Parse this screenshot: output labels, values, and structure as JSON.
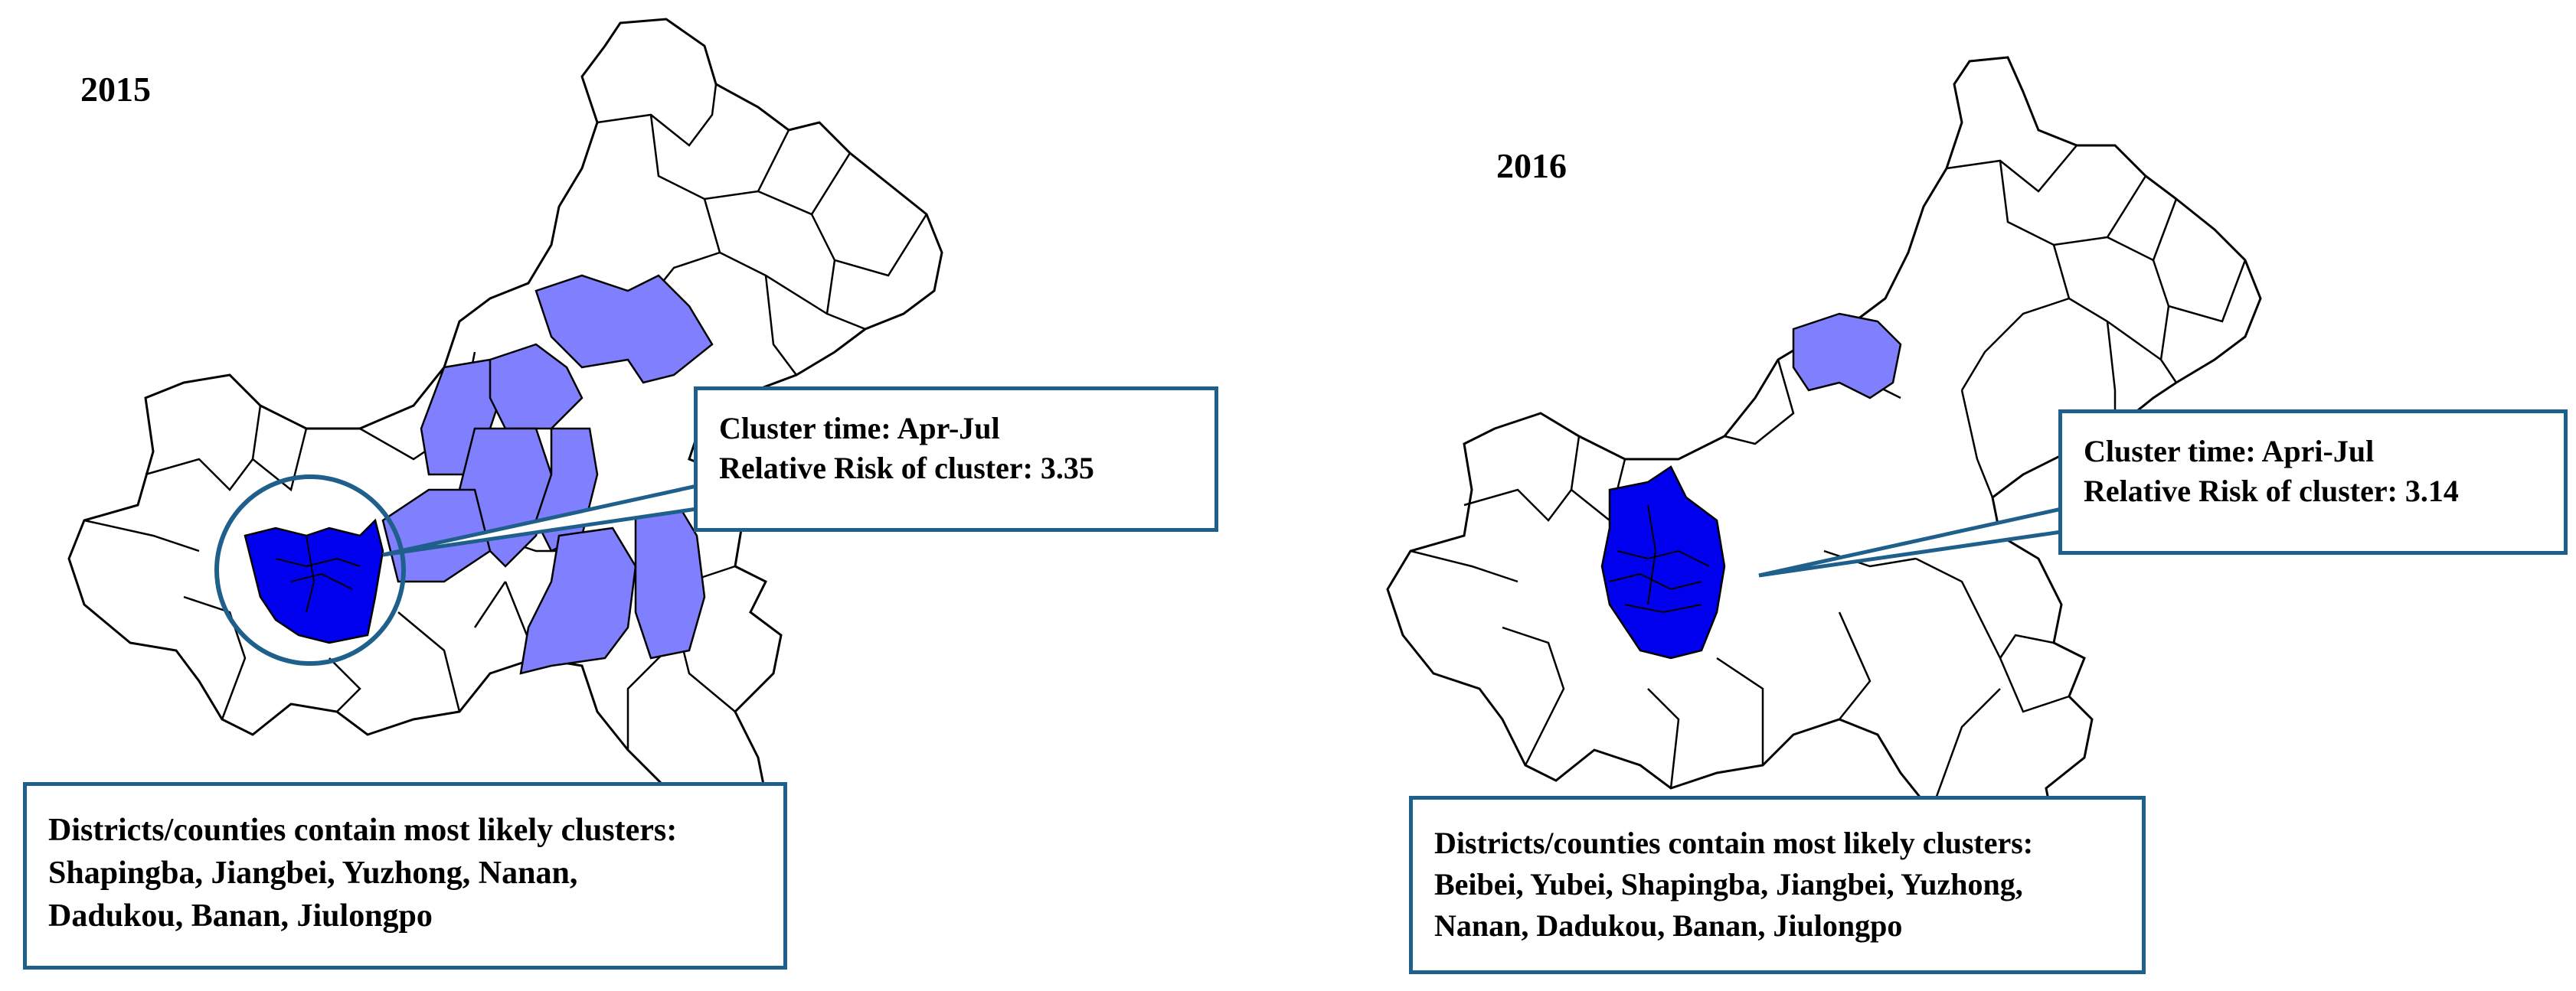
{
  "colors": {
    "cluster_core": "#0000ee",
    "cluster_secondary": "#8080ff",
    "callout_border": "#1f5f8b",
    "boundary": "#000000"
  },
  "panels": [
    {
      "year": "2015",
      "callout": {
        "time": "Cluster time: Apr-Jul",
        "risk": "Relative Risk of cluster: 3.35"
      },
      "districts": {
        "heading": "Districts/counties contain most likely clusters:",
        "line1": "Shapingba, Jiangbei, Yuzhong, Nanan,",
        "line2": "Dadukou, Banan, Jiulongpo"
      }
    },
    {
      "year": "2016",
      "callout": {
        "time": "Cluster time: Apri-Jul",
        "risk": "Relative Risk of cluster: 3.14"
      },
      "districts": {
        "heading": "Districts/counties contain most likely clusters:",
        "line1": "Beibei, Yubei, Shapingba, Jiangbei, Yuzhong,",
        "line2": "Nanan, Dadukou, Banan, Jiulongpo"
      }
    }
  ]
}
